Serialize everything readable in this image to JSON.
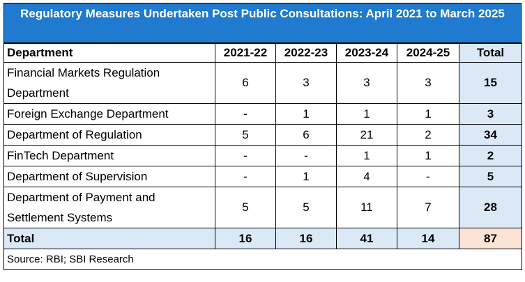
{
  "title": "Regulatory Measures  Undertaken Post Public Consultations: April 2021 to March 2025",
  "headers": [
    "Department",
    "2021-22",
    "2022-23",
    "2023-24",
    "2024-25",
    "Total"
  ],
  "rows": [
    {
      "department": "Financial Markets Regulation Department",
      "values": [
        "6",
        "3",
        "3",
        "3"
      ],
      "total": "15"
    },
    {
      "department": "Foreign Exchange Department",
      "values": [
        "-",
        "1",
        "1",
        "1"
      ],
      "total": "3"
    },
    {
      "department": "Department of Regulation",
      "values": [
        "5",
        "6",
        "21",
        "2"
      ],
      "total": "34"
    },
    {
      "department": "FinTech Department",
      "values": [
        "-",
        "-",
        "1",
        "1"
      ],
      "total": "2"
    },
    {
      "department": "Department of Supervision",
      "values": [
        "-",
        "1",
        "4",
        "-"
      ],
      "total": "5"
    },
    {
      "department": "Department of Payment and Settlement Systems",
      "values": [
        "5",
        "5",
        "11",
        "7"
      ],
      "total": "28"
    }
  ],
  "totals": {
    "label": "Total",
    "values": [
      "16",
      "16",
      "41",
      "14"
    ],
    "grand": "87"
  },
  "source": "Source: RBI; SBI Research",
  "colors": {
    "title_bg": "#1f7ad0",
    "total_bg": "#dbe9f7",
    "grand_bg": "#fbe4d5"
  }
}
